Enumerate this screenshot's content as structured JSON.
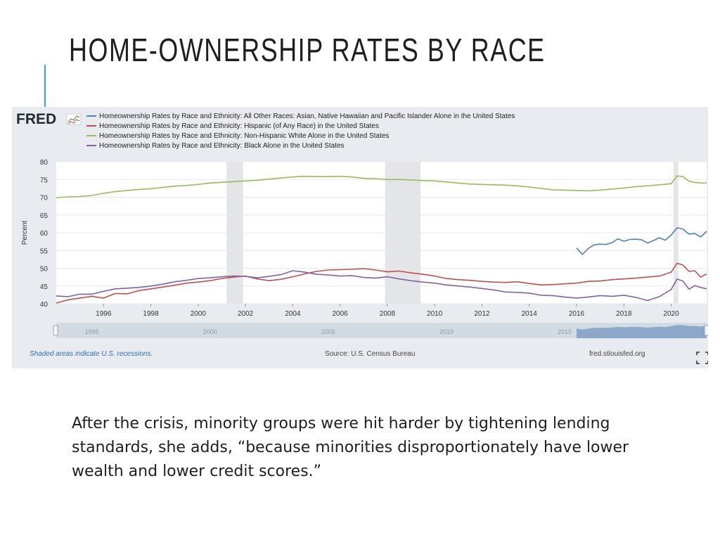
{
  "slide": {
    "title": "HOME-OWNERSHIP RATES BY RACE",
    "body": "After the crisis, minority groups were hit harder by tightening lending standards, she adds, “because minorities disproportionately have lower wealth and lower credit scores.”",
    "accent_color": "#3aa3c8"
  },
  "fred": {
    "logo": "FRED",
    "logo_icon": "chart-sparkline-icon",
    "recession_note": "Shaded areas indicate U.S. recessions.",
    "source": "Source: U.S. Census Bureau",
    "site": "fred.stlouisfed.org",
    "fullscreen_icon": "fullscreen-icon",
    "navigator_labels": [
      "1995",
      "2000",
      "2005",
      "2010",
      "2015"
    ]
  },
  "chart_data": {
    "type": "line",
    "title": "",
    "xlabel": "",
    "ylabel": "Percent",
    "xlim": [
      1994.0,
      2021.5
    ],
    "ylim": [
      40,
      80
    ],
    "y_ticks": [
      40,
      45,
      50,
      55,
      60,
      65,
      70,
      75,
      80
    ],
    "x_ticks": [
      "1996",
      "1998",
      "2000",
      "2002",
      "2004",
      "2006",
      "2008",
      "2010",
      "2012",
      "2014",
      "2016",
      "2018",
      "2020"
    ],
    "grid": true,
    "legend_position": "top-left",
    "recessions": [
      [
        2001.2,
        2001.9
      ],
      [
        2007.9,
        2009.4
      ],
      [
        2020.1,
        2020.3
      ]
    ],
    "series": [
      {
        "name": "Homeownership Rates by Race and Ethnicity: All Other Races: Asian, Native Hawaiian and Pacific Islander Alone in the United States",
        "color": "#4f81bd",
        "points": [
          [
            2016.0,
            55.7
          ],
          [
            2016.25,
            53.9
          ],
          [
            2016.5,
            55.6
          ],
          [
            2016.75,
            56.6
          ],
          [
            2017.0,
            56.8
          ],
          [
            2017.25,
            56.7
          ],
          [
            2017.5,
            57.2
          ],
          [
            2017.75,
            58.3
          ],
          [
            2018.0,
            57.6
          ],
          [
            2018.25,
            58.1
          ],
          [
            2018.5,
            58.2
          ],
          [
            2018.75,
            58.0
          ],
          [
            2019.0,
            57.1
          ],
          [
            2019.25,
            57.8
          ],
          [
            2019.5,
            58.6
          ],
          [
            2019.75,
            57.9
          ],
          [
            2020.0,
            59.3
          ],
          [
            2020.25,
            61.4
          ],
          [
            2020.5,
            61.0
          ],
          [
            2020.75,
            59.6
          ],
          [
            2021.0,
            59.8
          ],
          [
            2021.25,
            58.8
          ],
          [
            2021.5,
            60.4
          ]
        ]
      },
      {
        "name": "Homeownership Rates by Race and Ethnicity: Hispanic (of Any Race) in the United States",
        "color": "#c0504d",
        "points": [
          [
            1994.0,
            40.2
          ],
          [
            1994.5,
            41.1
          ],
          [
            1995.0,
            41.6
          ],
          [
            1995.5,
            42.1
          ],
          [
            1996.0,
            41.6
          ],
          [
            1996.5,
            42.9
          ],
          [
            1997.0,
            42.8
          ],
          [
            1997.5,
            43.7
          ],
          [
            1998.0,
            44.2
          ],
          [
            1998.5,
            44.7
          ],
          [
            1999.0,
            45.2
          ],
          [
            1999.5,
            45.8
          ],
          [
            2000.0,
            46.1
          ],
          [
            2000.5,
            46.5
          ],
          [
            2001.0,
            47.1
          ],
          [
            2001.5,
            47.5
          ],
          [
            2002.0,
            47.8
          ],
          [
            2002.5,
            47.0
          ],
          [
            2003.0,
            46.5
          ],
          [
            2003.5,
            46.9
          ],
          [
            2004.0,
            47.6
          ],
          [
            2004.5,
            48.4
          ],
          [
            2005.0,
            49.1
          ],
          [
            2005.5,
            49.5
          ],
          [
            2006.0,
            49.6
          ],
          [
            2006.5,
            49.7
          ],
          [
            2007.0,
            49.9
          ],
          [
            2007.5,
            49.5
          ],
          [
            2008.0,
            49.0
          ],
          [
            2008.5,
            49.2
          ],
          [
            2009.0,
            48.7
          ],
          [
            2009.5,
            48.3
          ],
          [
            2010.0,
            47.8
          ],
          [
            2010.5,
            47.1
          ],
          [
            2011.0,
            46.8
          ],
          [
            2011.5,
            46.6
          ],
          [
            2012.0,
            46.3
          ],
          [
            2012.5,
            46.1
          ],
          [
            2013.0,
            46.0
          ],
          [
            2013.5,
            46.2
          ],
          [
            2014.0,
            45.7
          ],
          [
            2014.5,
            45.3
          ],
          [
            2015.0,
            45.4
          ],
          [
            2015.5,
            45.6
          ],
          [
            2016.0,
            45.8
          ],
          [
            2016.5,
            46.3
          ],
          [
            2017.0,
            46.4
          ],
          [
            2017.5,
            46.8
          ],
          [
            2018.0,
            47.0
          ],
          [
            2018.5,
            47.2
          ],
          [
            2019.0,
            47.5
          ],
          [
            2019.5,
            47.8
          ],
          [
            2020.0,
            48.9
          ],
          [
            2020.25,
            51.4
          ],
          [
            2020.5,
            50.9
          ],
          [
            2020.75,
            49.1
          ],
          [
            2021.0,
            49.3
          ],
          [
            2021.25,
            47.5
          ],
          [
            2021.5,
            48.4
          ]
        ]
      },
      {
        "name": "Homeownership Rates by Race and Ethnicity: Non-Hispanic White Alone in the United States",
        "color": "#9bbb59",
        "points": [
          [
            1994.0,
            69.9
          ],
          [
            1994.5,
            70.1
          ],
          [
            1995.0,
            70.2
          ],
          [
            1995.5,
            70.5
          ],
          [
            1996.0,
            71.1
          ],
          [
            1996.5,
            71.6
          ],
          [
            1997.0,
            71.9
          ],
          [
            1997.5,
            72.2
          ],
          [
            1998.0,
            72.4
          ],
          [
            1998.5,
            72.8
          ],
          [
            1999.0,
            73.1
          ],
          [
            1999.5,
            73.3
          ],
          [
            2000.0,
            73.6
          ],
          [
            2000.5,
            74.0
          ],
          [
            2001.0,
            74.2
          ],
          [
            2001.5,
            74.4
          ],
          [
            2002.0,
            74.6
          ],
          [
            2002.5,
            74.8
          ],
          [
            2003.0,
            75.1
          ],
          [
            2003.5,
            75.4
          ],
          [
            2004.0,
            75.7
          ],
          [
            2004.5,
            75.9
          ],
          [
            2005.0,
            75.8
          ],
          [
            2005.5,
            75.8
          ],
          [
            2006.0,
            75.9
          ],
          [
            2006.5,
            75.7
          ],
          [
            2007.0,
            75.3
          ],
          [
            2007.5,
            75.2
          ],
          [
            2008.0,
            75.0
          ],
          [
            2008.5,
            75.0
          ],
          [
            2009.0,
            74.9
          ],
          [
            2009.5,
            74.7
          ],
          [
            2010.0,
            74.6
          ],
          [
            2010.5,
            74.3
          ],
          [
            2011.0,
            74.0
          ],
          [
            2011.5,
            73.7
          ],
          [
            2012.0,
            73.6
          ],
          [
            2012.5,
            73.5
          ],
          [
            2013.0,
            73.4
          ],
          [
            2013.5,
            73.2
          ],
          [
            2014.0,
            72.9
          ],
          [
            2014.5,
            72.5
          ],
          [
            2015.0,
            72.1
          ],
          [
            2015.5,
            72.0
          ],
          [
            2016.0,
            71.9
          ],
          [
            2016.5,
            71.8
          ],
          [
            2017.0,
            72.0
          ],
          [
            2017.5,
            72.3
          ],
          [
            2018.0,
            72.6
          ],
          [
            2018.5,
            73.0
          ],
          [
            2019.0,
            73.2
          ],
          [
            2019.5,
            73.5
          ],
          [
            2020.0,
            73.8
          ],
          [
            2020.25,
            76.0
          ],
          [
            2020.5,
            75.8
          ],
          [
            2020.75,
            74.5
          ],
          [
            2021.0,
            74.2
          ],
          [
            2021.25,
            74.0
          ],
          [
            2021.5,
            74.0
          ]
        ]
      },
      {
        "name": "Homeownership Rates by Race and Ethnicity: Black Alone in the United States",
        "color": "#8064a2",
        "points": [
          [
            1994.0,
            42.2
          ],
          [
            1994.5,
            42.0
          ],
          [
            1995.0,
            42.7
          ],
          [
            1995.5,
            42.7
          ],
          [
            1996.0,
            43.5
          ],
          [
            1996.5,
            44.2
          ],
          [
            1997.0,
            44.4
          ],
          [
            1997.5,
            44.6
          ],
          [
            1998.0,
            45.0
          ],
          [
            1998.5,
            45.5
          ],
          [
            1999.0,
            46.2
          ],
          [
            1999.5,
            46.6
          ],
          [
            2000.0,
            47.1
          ],
          [
            2000.5,
            47.3
          ],
          [
            2001.0,
            47.6
          ],
          [
            2001.5,
            47.8
          ],
          [
            2002.0,
            47.7
          ],
          [
            2002.5,
            47.3
          ],
          [
            2003.0,
            47.7
          ],
          [
            2003.5,
            48.2
          ],
          [
            2004.0,
            49.3
          ],
          [
            2004.5,
            48.9
          ],
          [
            2005.0,
            48.3
          ],
          [
            2005.5,
            48.1
          ],
          [
            2006.0,
            47.8
          ],
          [
            2006.5,
            47.9
          ],
          [
            2007.0,
            47.4
          ],
          [
            2007.5,
            47.2
          ],
          [
            2008.0,
            47.6
          ],
          [
            2008.5,
            47.0
          ],
          [
            2009.0,
            46.5
          ],
          [
            2009.5,
            46.1
          ],
          [
            2010.0,
            45.8
          ],
          [
            2010.5,
            45.3
          ],
          [
            2011.0,
            45.0
          ],
          [
            2011.5,
            44.7
          ],
          [
            2012.0,
            44.3
          ],
          [
            2012.5,
            43.9
          ],
          [
            2013.0,
            43.3
          ],
          [
            2013.5,
            43.2
          ],
          [
            2014.0,
            43.0
          ],
          [
            2014.5,
            42.4
          ],
          [
            2015.0,
            42.3
          ],
          [
            2015.5,
            41.9
          ],
          [
            2016.0,
            41.6
          ],
          [
            2016.5,
            41.9
          ],
          [
            2017.0,
            42.3
          ],
          [
            2017.5,
            42.1
          ],
          [
            2018.0,
            42.4
          ],
          [
            2018.5,
            41.8
          ],
          [
            2019.0,
            40.9
          ],
          [
            2019.5,
            42.0
          ],
          [
            2020.0,
            44.0
          ],
          [
            2020.25,
            47.0
          ],
          [
            2020.5,
            46.4
          ],
          [
            2020.75,
            44.1
          ],
          [
            2021.0,
            45.1
          ],
          [
            2021.25,
            44.6
          ],
          [
            2021.5,
            44.2
          ]
        ]
      }
    ]
  }
}
